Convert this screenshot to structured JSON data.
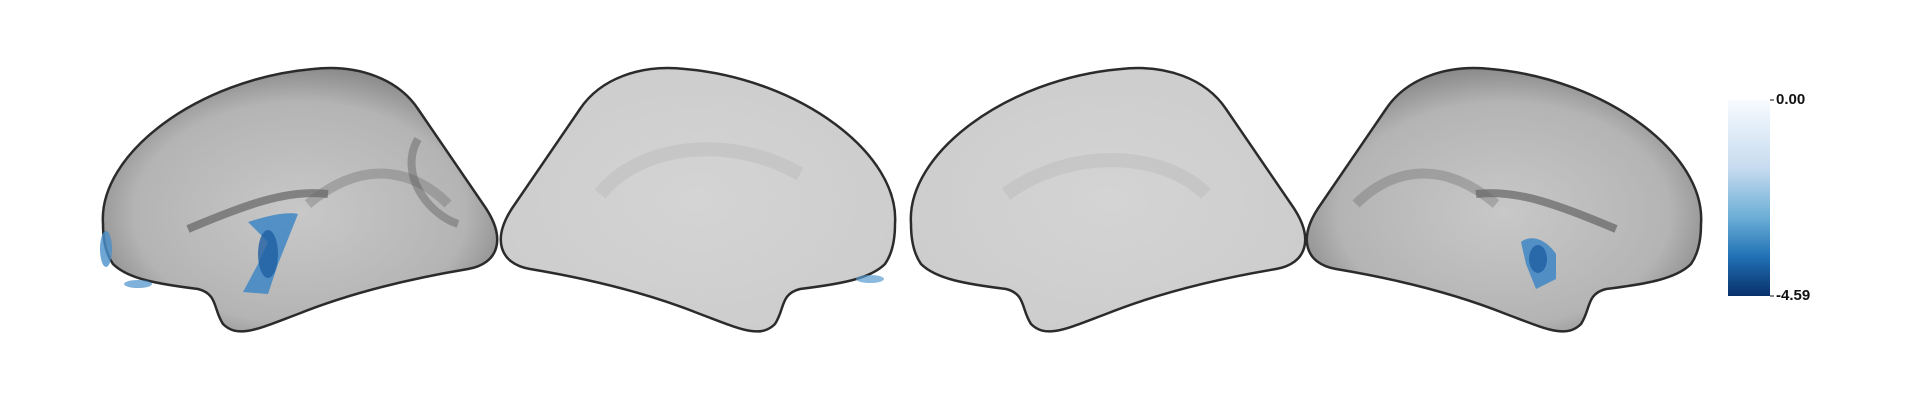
{
  "colorbar": {
    "lim": [
      -4.59,
      0
    ],
    "ticks": [
      {
        "value": 0,
        "label": "0.00"
      },
      {
        "value": -4.59,
        "label": "-4.59"
      }
    ]
  }
}
